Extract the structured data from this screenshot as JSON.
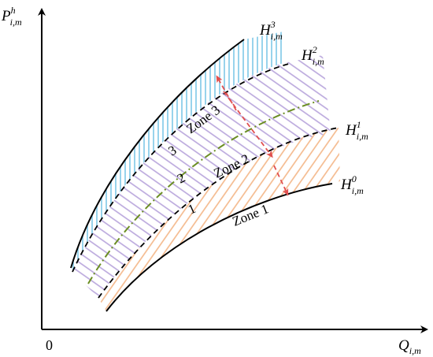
{
  "axes": {
    "y_label": {
      "base": "P",
      "sup": "h",
      "sub": "i,m"
    },
    "x_label": {
      "base": "Q",
      "sub": "i,m"
    },
    "origin": "0"
  },
  "curves": [
    {
      "base": "H",
      "sup": "3",
      "sub": "i,m"
    },
    {
      "base": "H",
      "sup": "2",
      "sub": "i,m"
    },
    {
      "base": "H",
      "sup": "1",
      "sub": "i,m"
    },
    {
      "base": "H",
      "sup": "0",
      "sub": "i,m"
    }
  ],
  "zones": [
    "Zone 3",
    "Zone 2",
    "Zone 1"
  ],
  "line_numbers": [
    "3",
    "2",
    "1"
  ],
  "colors": {
    "zone3_hatch": "#7ec8e8",
    "zone2_hatch": "#b9a6dc",
    "zone1_hatch": "#f4b88a",
    "mid_line": "#6b8e23",
    "arrow": "#e05050"
  }
}
